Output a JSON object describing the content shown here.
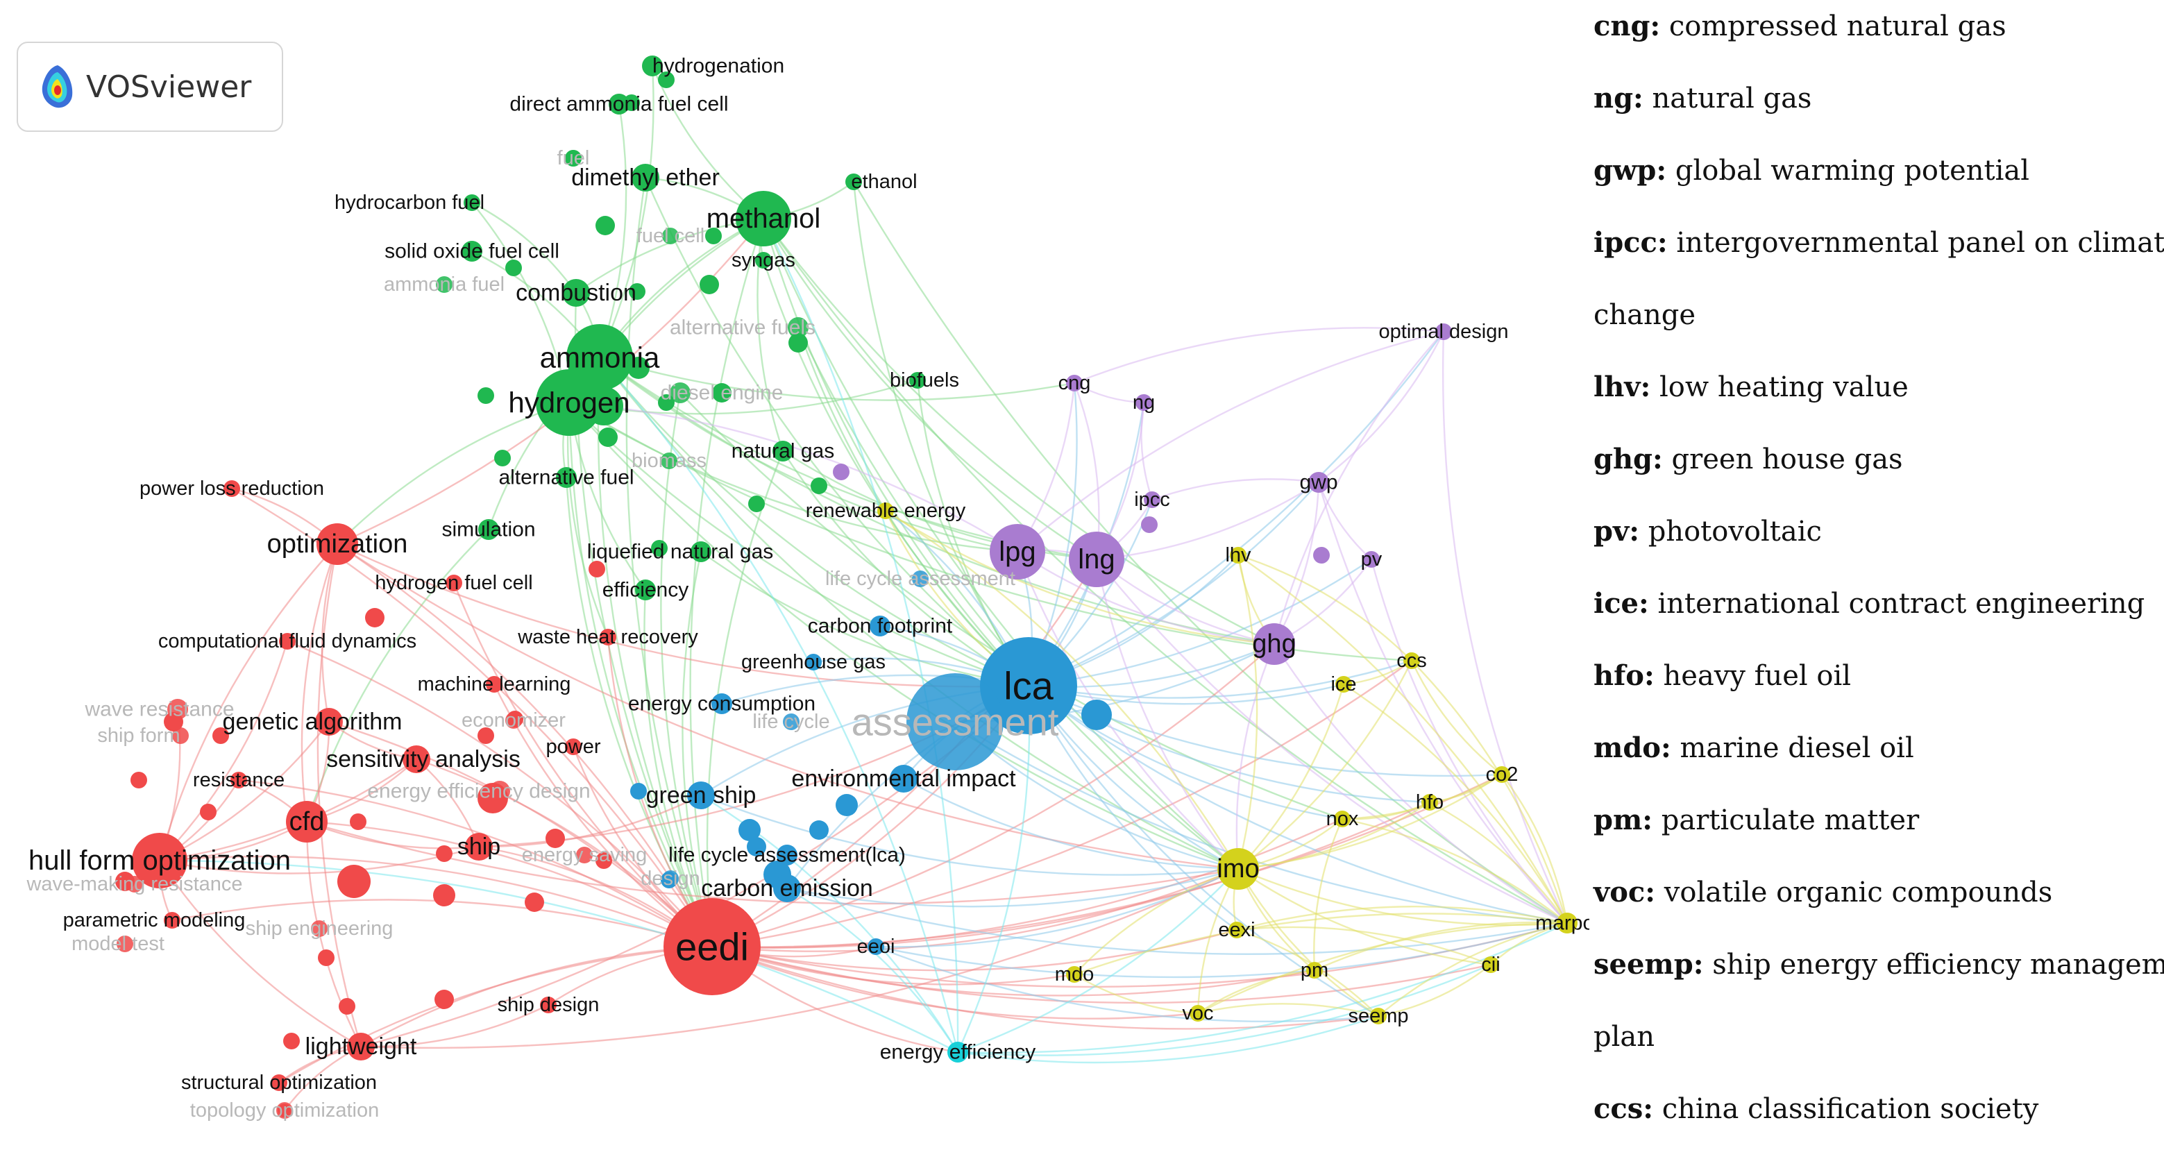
{
  "logo": {
    "text": "VOSviewer",
    "icon": "vosviewer-logo-icon"
  },
  "colors": {
    "red": "#f04a4a",
    "green": "#20b850",
    "blue": "#2a98d4",
    "purple": "#a97cd0",
    "yellow": "#d4d21c",
    "cyan": "#18d0d8",
    "edge_red": "#f08a8a",
    "edge_green": "#8adb90",
    "edge_blue": "#8cc8ea",
    "edge_purple": "#d8b8f0",
    "edge_yellow": "#e2e06a",
    "edge_cyan": "#7ce8ec"
  },
  "nodes": [
    {
      "id": "hydrogenation",
      "label": "hydrogenation",
      "cluster": "green",
      "size": 2
    },
    {
      "id": "direct_ammonia_fuel_cell",
      "label": "direct ammonia fuel cell",
      "cluster": "green",
      "size": 2
    },
    {
      "id": "fuel",
      "label": "fuel",
      "cluster": "green",
      "size": 1,
      "faded": true
    },
    {
      "id": "dimethyl_ether",
      "label": "dimethyl ether",
      "cluster": "green",
      "size": 3
    },
    {
      "id": "ethanol",
      "label": "ethanol",
      "cluster": "green",
      "size": 1
    },
    {
      "id": "hydrocarbon_fuel",
      "label": "hydrocarbon fuel",
      "cluster": "green",
      "size": 1
    },
    {
      "id": "methanol",
      "label": "methanol",
      "cluster": "green",
      "size": 5
    },
    {
      "id": "fuel_cell",
      "label": "fuel cell",
      "cluster": "green",
      "size": 1,
      "faded": true
    },
    {
      "id": "solid_oxide_fuel_cell",
      "label": "solid oxide fuel cell",
      "cluster": "green",
      "size": 2
    },
    {
      "id": "syngas",
      "label": "syngas",
      "cluster": "green",
      "size": 1
    },
    {
      "id": "ammonia_fuel",
      "label": "ammonia fuel",
      "cluster": "green",
      "size": 1,
      "faded": true
    },
    {
      "id": "combustion",
      "label": "combustion",
      "cluster": "green",
      "size": 3
    },
    {
      "id": "alternative_fuels",
      "label": "alternative fuels",
      "cluster": "green",
      "size": 2,
      "faded": true
    },
    {
      "id": "ammonia",
      "label": "ammonia",
      "cluster": "green",
      "size": 6
    },
    {
      "id": "diesel_engine",
      "label": "diesel engine",
      "cluster": "green",
      "size": 2,
      "faded": true
    },
    {
      "id": "hydrogen",
      "label": "hydrogen",
      "cluster": "green",
      "size": 6
    },
    {
      "id": "biofuels",
      "label": "biofuels",
      "cluster": "green",
      "size": 1
    },
    {
      "id": "biomass",
      "label": "biomass",
      "cluster": "green",
      "size": 1,
      "faded": true
    },
    {
      "id": "natural_gas",
      "label": "natural gas",
      "cluster": "green",
      "size": 2
    },
    {
      "id": "alternative_fuel",
      "label": "alternative fuel",
      "cluster": "green",
      "size": 2
    },
    {
      "id": "simulation",
      "label": "simulation",
      "cluster": "green",
      "size": 2
    },
    {
      "id": "liquefied_natural_gas",
      "label": "liquefied natural gas",
      "cluster": "green",
      "size": 2
    },
    {
      "id": "efficiency",
      "label": "efficiency",
      "cluster": "green",
      "size": 2
    },
    {
      "id": "renewable_energy",
      "label": "renewable energy",
      "cluster": "yellow",
      "size": 1
    },
    {
      "id": "cng",
      "label": "cng",
      "cluster": "purple",
      "size": 1
    },
    {
      "id": "ng",
      "label": "ng",
      "cluster": "purple",
      "size": 1
    },
    {
      "id": "optimal_design",
      "label": "optimal design",
      "cluster": "purple",
      "size": 1
    },
    {
      "id": "ipcc",
      "label": "ipcc",
      "cluster": "purple",
      "size": 1
    },
    {
      "id": "gwp",
      "label": "gwp",
      "cluster": "purple",
      "size": 2
    },
    {
      "id": "lpg",
      "label": "lpg",
      "cluster": "purple",
      "size": 5
    },
    {
      "id": "lng",
      "label": "lng",
      "cluster": "purple",
      "size": 5
    },
    {
      "id": "lhv",
      "label": "lhv",
      "cluster": "yellow",
      "size": 1
    },
    {
      "id": "pv",
      "label": "pv",
      "cluster": "purple",
      "size": 1
    },
    {
      "id": "ghg",
      "label": "ghg",
      "cluster": "purple",
      "size": 4
    },
    {
      "id": "ccs",
      "label": "ccs",
      "cluster": "yellow",
      "size": 1
    },
    {
      "id": "ice",
      "label": "ice",
      "cluster": "yellow",
      "size": 1
    },
    {
      "id": "co2",
      "label": "co2",
      "cluster": "yellow",
      "size": 1
    },
    {
      "id": "hfo",
      "label": "hfo",
      "cluster": "yellow",
      "size": 1
    },
    {
      "id": "nox",
      "label": "nox",
      "cluster": "yellow",
      "size": 1
    },
    {
      "id": "imo",
      "label": "imo",
      "cluster": "yellow",
      "size": 4
    },
    {
      "id": "marpol",
      "label": "marpol",
      "cluster": "yellow",
      "size": 2
    },
    {
      "id": "eexi",
      "label": "eexi",
      "cluster": "yellow",
      "size": 1
    },
    {
      "id": "cii",
      "label": "cii",
      "cluster": "yellow",
      "size": 1
    },
    {
      "id": "pm",
      "label": "pm",
      "cluster": "yellow",
      "size": 1
    },
    {
      "id": "mdo",
      "label": "mdo",
      "cluster": "yellow",
      "size": 1
    },
    {
      "id": "voc",
      "label": "voc",
      "cluster": "yellow",
      "size": 1
    },
    {
      "id": "seemp",
      "label": "seemp",
      "cluster": "yellow",
      "size": 1
    },
    {
      "id": "life_cycle_assessment",
      "label": "life cycle assessment",
      "cluster": "blue",
      "size": 1,
      "faded": true
    },
    {
      "id": "carbon_footprint",
      "label": "carbon footprint",
      "cluster": "blue",
      "size": 2
    },
    {
      "id": "greenhouse_gas",
      "label": "greenhouse gas",
      "cluster": "blue",
      "size": 1
    },
    {
      "id": "lca",
      "label": "lca",
      "cluster": "blue",
      "size": 8
    },
    {
      "id": "assessment",
      "label": "assessment",
      "cluster": "blue",
      "size": 8,
      "faded": true
    },
    {
      "id": "energy_consumption",
      "label": "energy consumption",
      "cluster": "blue",
      "size": 2
    },
    {
      "id": "life_cycle",
      "label": "life cycle",
      "cluster": "blue",
      "size": 1,
      "faded": true
    },
    {
      "id": "environmental_impact",
      "label": "environmental impact",
      "cluster": "blue",
      "size": 3
    },
    {
      "id": "green_ship",
      "label": "green ship",
      "cluster": "blue",
      "size": 3
    },
    {
      "id": "life_cycle_assessment_lca",
      "label": "life cycle assessment(lca)",
      "cluster": "blue",
      "size": 2
    },
    {
      "id": "carbon_emission",
      "label": "carbon emission",
      "cluster": "blue",
      "size": 3
    },
    {
      "id": "design",
      "label": "design",
      "cluster": "blue",
      "size": 1,
      "faded": true
    },
    {
      "id": "eeoi",
      "label": "eeoi",
      "cluster": "blue",
      "size": 1
    },
    {
      "id": "energy_efficiency",
      "label": "energy efficiency",
      "cluster": "cyan",
      "size": 2
    },
    {
      "id": "power_loss_reduction",
      "label": "power loss reduction",
      "cluster": "red",
      "size": 1
    },
    {
      "id": "optimization",
      "label": "optimization",
      "cluster": "red",
      "size": 4
    },
    {
      "id": "hydrogen_fuel_cell",
      "label": "hydrogen fuel cell",
      "cluster": "red",
      "size": 1
    },
    {
      "id": "computational_fluid_dynamics",
      "label": "computational fluid dynamics",
      "cluster": "red",
      "size": 1
    },
    {
      "id": "waste_heat_recovery",
      "label": "waste heat recovery",
      "cluster": "red",
      "size": 1
    },
    {
      "id": "machine_learning",
      "label": "machine learning",
      "cluster": "red",
      "size": 1
    },
    {
      "id": "wave_resistance",
      "label": "wave resistance",
      "cluster": "red",
      "size": 2,
      "faded": true
    },
    {
      "id": "ship_form",
      "label": "ship form",
      "cluster": "red",
      "size": 1,
      "faded": true
    },
    {
      "id": "economizer",
      "label": "economizer",
      "cluster": "red",
      "size": 1,
      "faded": true
    },
    {
      "id": "genetic_algorithm",
      "label": "genetic algorithm",
      "cluster": "red",
      "size": 3
    },
    {
      "id": "power",
      "label": "power",
      "cluster": "red",
      "size": 1
    },
    {
      "id": "resistance",
      "label": "resistance",
      "cluster": "red",
      "size": 1
    },
    {
      "id": "sensitivity_analysis",
      "label": "sensitivity analysis",
      "cluster": "red",
      "size": 3
    },
    {
      "id": "energy_efficiency_design",
      "label": "energy efficiency design",
      "cluster": "red",
      "size": 2,
      "faded": true
    },
    {
      "id": "cfd",
      "label": "cfd",
      "cluster": "red",
      "size": 4
    },
    {
      "id": "hull_form_optimization",
      "label": "hull form optimization",
      "cluster": "red",
      "size": 5
    },
    {
      "id": "ship",
      "label": "ship",
      "cluster": "red",
      "size": 3
    },
    {
      "id": "energy_saving",
      "label": "energy saving",
      "cluster": "red",
      "size": 1,
      "faded": true
    },
    {
      "id": "wave_making_resistance",
      "label": "wave-making resistance",
      "cluster": "red",
      "size": 1,
      "faded": true
    },
    {
      "id": "parametric_modeling",
      "label": "parametric modeling",
      "cluster": "red",
      "size": 1
    },
    {
      "id": "ship_engineering",
      "label": "ship engineering",
      "cluster": "red",
      "size": 1,
      "faded": true
    },
    {
      "id": "model_test",
      "label": "model test",
      "cluster": "red",
      "size": 1,
      "faded": true
    },
    {
      "id": "eedi",
      "label": "eedi",
      "cluster": "red",
      "size": 8
    },
    {
      "id": "ship_design",
      "label": "ship design",
      "cluster": "red",
      "size": 1
    },
    {
      "id": "lightweight",
      "label": "lightweight",
      "cluster": "red",
      "size": 3
    },
    {
      "id": "structural_optimization",
      "label": "structural optimization",
      "cluster": "red",
      "size": 1
    },
    {
      "id": "topology_optimization",
      "label": "topology optimization",
      "cluster": "red",
      "size": 1,
      "faded": true
    }
  ],
  "legend": [
    {
      "abbr": "cng:",
      "full": "compressed natural gas"
    },
    {
      "abbr": "ng:",
      "full": "natural gas"
    },
    {
      "abbr": "gwp:",
      "full": "global warming potential"
    },
    {
      "abbr": "ipcc:",
      "full": "intergovernmental panel on climate"
    },
    {
      "abbr": "",
      "full": "change"
    },
    {
      "abbr": "lhv:",
      "full": "low heating value"
    },
    {
      "abbr": "ghg:",
      "full": "green house gas"
    },
    {
      "abbr": "pv:",
      "full": "photovoltaic"
    },
    {
      "abbr": "ice:",
      "full": "international contract engineering"
    },
    {
      "abbr": "hfo:",
      "full": "heavy fuel oil"
    },
    {
      "abbr": "mdo:",
      "full": "marine diesel oil"
    },
    {
      "abbr": "pm:",
      "full": "particulate matter"
    },
    {
      "abbr": "voc:",
      "full": "volatile organic compounds"
    },
    {
      "abbr": "seemp:",
      "full": "ship energy efficiency management"
    },
    {
      "abbr": "",
      "full": "plan"
    },
    {
      "abbr": "ccs:",
      "full": "china classification society"
    }
  ]
}
